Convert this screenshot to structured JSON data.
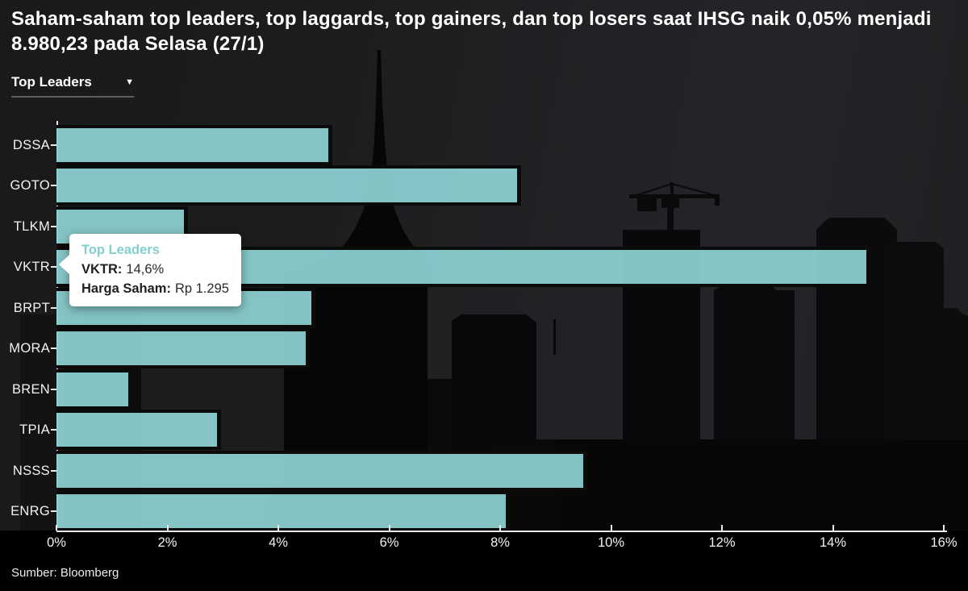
{
  "header": {
    "title": "Saham-saham top leaders, top laggards, top gainers, dan top losers saat IHSG naik 0,05% menjadi 8.980,23 pada Selasa (27/1)"
  },
  "controls": {
    "series_dropdown": {
      "selected": "Top Leaders",
      "caret": "▼"
    }
  },
  "chart_data": {
    "type": "bar",
    "orientation": "horizontal",
    "series_name": "Top Leaders",
    "categories": [
      "DSSA",
      "GOTO",
      "TLKM",
      "VKTR",
      "BRPT",
      "MORA",
      "BREN",
      "TPIA",
      "NSSS",
      "ENRG"
    ],
    "values": [
      4.9,
      8.3,
      2.3,
      14.6,
      4.6,
      4.5,
      1.3,
      2.9,
      9.5,
      8.1
    ],
    "value_suffix": "%",
    "xlim": [
      0,
      16
    ],
    "xtick_labels": [
      "0%",
      "2%",
      "4%",
      "6%",
      "8%",
      "10%",
      "12%",
      "14%",
      "16%"
    ],
    "grid": false,
    "legend": "none",
    "bar_color": "#8CCFD0",
    "highlighted_category": "VKTR",
    "background_theme": "dark-city-skyline"
  },
  "tooltip": {
    "series": "Top Leaders",
    "category_label": "VKTR:",
    "value": "14,6%",
    "price_label": "Harga Saham:",
    "price_value": "Rp 1.295",
    "accent_color": "#82cfcf"
  },
  "footer": {
    "source": "Sumber: Bloomberg"
  }
}
